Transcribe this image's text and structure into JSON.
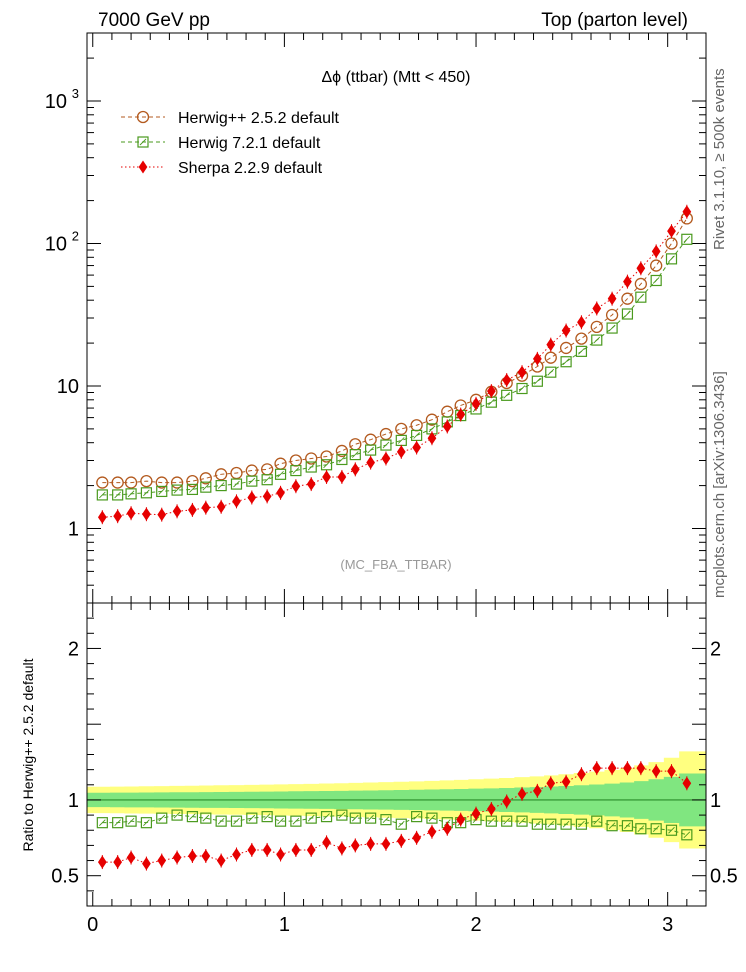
{
  "header": {
    "left": "7000 GeV pp",
    "right": "Top (parton level)"
  },
  "side_labels": {
    "rivet": "Rivet 3.1.10, ≥ 500k events",
    "mcplots": "mcplots.cern.ch [arXiv:1306.3436]"
  },
  "chart_data": [
    {
      "type": "scatter",
      "title": "Δϕ (ttbar) (Mtt < 450)",
      "watermark": "(MC_FBA_TTBAR)",
      "yscale": "log",
      "ylim": [
        0.3,
        3000
      ],
      "xlim": [
        -0.03,
        3.2
      ],
      "y_ticks": [
        {
          "v": 1,
          "label": "1"
        },
        {
          "v": 10,
          "label": "10"
        },
        {
          "v": 100,
          "label": "10",
          "sup": "2"
        },
        {
          "v": 1000,
          "label": "10",
          "sup": "3"
        }
      ],
      "legend_position": "top-left",
      "x": [
        0.05,
        0.13,
        0.2,
        0.28,
        0.36,
        0.44,
        0.52,
        0.59,
        0.67,
        0.75,
        0.83,
        0.91,
        0.98,
        1.06,
        1.14,
        1.22,
        1.3,
        1.37,
        1.45,
        1.53,
        1.61,
        1.69,
        1.77,
        1.85,
        1.92,
        2.0,
        2.08,
        2.16,
        2.24,
        2.32,
        2.39,
        2.47,
        2.55,
        2.63,
        2.71,
        2.79,
        2.86,
        2.94,
        3.02,
        3.1
      ],
      "series": [
        {
          "name": "Herwig++ 2.5.2 default",
          "color": "#b35a1f",
          "marker": "circle",
          "line": "dashed",
          "values": [
            2.1,
            2.1,
            2.1,
            2.15,
            2.1,
            2.1,
            2.15,
            2.25,
            2.4,
            2.45,
            2.55,
            2.6,
            2.85,
            3.0,
            3.1,
            3.2,
            3.5,
            3.9,
            4.2,
            4.6,
            5.0,
            5.3,
            5.8,
            6.6,
            7.3,
            8.0,
            9.1,
            10.5,
            11.8,
            13.7,
            15.8,
            18.5,
            21.5,
            26.0,
            31.5,
            41.0,
            52.0,
            70.0,
            100.0,
            150.0
          ]
        },
        {
          "name": "Herwig 7.2.1 default",
          "color": "#4a9a1e",
          "marker": "square",
          "line": "dashed",
          "values": [
            1.72,
            1.72,
            1.75,
            1.78,
            1.82,
            1.86,
            1.88,
            1.95,
            2.0,
            2.05,
            2.15,
            2.2,
            2.4,
            2.55,
            2.7,
            2.8,
            3.05,
            3.3,
            3.55,
            3.85,
            4.15,
            4.5,
            5.0,
            5.6,
            6.2,
            6.9,
            7.7,
            8.6,
            9.6,
            10.8,
            12.5,
            14.8,
            17.5,
            21.0,
            25.5,
            32.0,
            42.0,
            55.0,
            78.0,
            107.0
          ]
        },
        {
          "name": "Sherpa 2.2.9 default",
          "color": "#e60000",
          "marker": "diamond",
          "line": "dotted",
          "values": [
            1.2,
            1.22,
            1.28,
            1.26,
            1.25,
            1.32,
            1.35,
            1.4,
            1.42,
            1.55,
            1.65,
            1.68,
            1.78,
            1.98,
            2.05,
            2.3,
            2.3,
            2.6,
            2.9,
            3.1,
            3.45,
            3.7,
            4.3,
            5.2,
            6.3,
            7.5,
            9.2,
            11.0,
            12.5,
            15.5,
            19.5,
            24.5,
            28.0,
            35.0,
            41.0,
            54.0,
            67.0,
            88.0,
            122.0,
            167.0
          ]
        }
      ]
    },
    {
      "type": "scatter",
      "ylabel": "Ratio to Herwig++ 2.5.2 default",
      "ylim": [
        0.3,
        2.3
      ],
      "xlim": [
        -0.03,
        3.2
      ],
      "x_ticks": [
        {
          "v": 0,
          "label": "0"
        },
        {
          "v": 1,
          "label": "1"
        },
        {
          "v": 2,
          "label": "2"
        },
        {
          "v": 3,
          "label": "3"
        }
      ],
      "y_ticks": [
        {
          "v": 0.5,
          "label": "0.5"
        },
        {
          "v": 1,
          "label": "1"
        },
        {
          "v": 2,
          "label": "2"
        }
      ],
      "reference_band": {
        "outer_color": "#ffff80",
        "inner_color": "#80e680",
        "line_color": "#2a8c2a"
      },
      "x": [
        0.05,
        0.13,
        0.2,
        0.28,
        0.36,
        0.44,
        0.52,
        0.59,
        0.67,
        0.75,
        0.83,
        0.91,
        0.98,
        1.06,
        1.14,
        1.22,
        1.3,
        1.37,
        1.45,
        1.53,
        1.61,
        1.69,
        1.77,
        1.85,
        1.92,
        2.0,
        2.08,
        2.16,
        2.24,
        2.32,
        2.39,
        2.47,
        2.55,
        2.63,
        2.71,
        2.79,
        2.86,
        2.94,
        3.02,
        3.1
      ],
      "series": [
        {
          "name": "Herwig 7.2.1 default",
          "color": "#4a9a1e",
          "marker": "square",
          "values": [
            0.85,
            0.85,
            0.86,
            0.85,
            0.88,
            0.9,
            0.89,
            0.88,
            0.86,
            0.86,
            0.88,
            0.89,
            0.86,
            0.86,
            0.88,
            0.89,
            0.9,
            0.88,
            0.88,
            0.87,
            0.84,
            0.89,
            0.88,
            0.85,
            0.85,
            0.87,
            0.86,
            0.86,
            0.86,
            0.84,
            0.84,
            0.84,
            0.84,
            0.86,
            0.83,
            0.83,
            0.81,
            0.81,
            0.8,
            0.77
          ]
        },
        {
          "name": "Sherpa 2.2.9 default",
          "color": "#e60000",
          "marker": "diamond",
          "values": [
            0.59,
            0.59,
            0.62,
            0.58,
            0.6,
            0.62,
            0.63,
            0.63,
            0.6,
            0.64,
            0.67,
            0.67,
            0.64,
            0.67,
            0.67,
            0.72,
            0.68,
            0.7,
            0.71,
            0.71,
            0.73,
            0.75,
            0.79,
            0.81,
            0.87,
            0.91,
            0.94,
            0.99,
            1.04,
            1.06,
            1.11,
            1.12,
            1.17,
            1.21,
            1.21,
            1.21,
            1.21,
            1.19,
            1.19,
            1.11
          ]
        }
      ]
    }
  ]
}
